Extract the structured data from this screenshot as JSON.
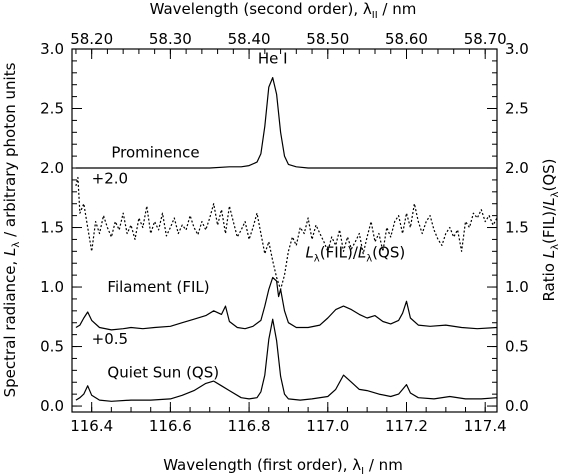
{
  "chart_data": {
    "type": "line",
    "title": "",
    "xlabel_bottom": {
      "text": "Wavelength (first order), λ",
      "sub": "I",
      "tail": " / nm"
    },
    "xlabel_top": {
      "text": "Wavelength (second order), λ",
      "sub": "II",
      "tail": " / nm"
    },
    "ylabel_left": {
      "pre": "Spectral radiance, ",
      "sym": "L",
      "sub": "λ",
      "tail": " / arbitrary photon units"
    },
    "ylabel_right": {
      "pre": "Ratio ",
      "sym1": "L",
      "sub1": "λ",
      "mid": "(FIL)/",
      "sym2": "L",
      "sub2": "λ",
      "tail": "(QS)"
    },
    "xlim_bottom": [
      116.35,
      117.43
    ],
    "xticks_bottom": [
      "116.4",
      "116.6",
      "116.8",
      "117.0",
      "117.2",
      "117.4"
    ],
    "xticks_bottom_values": [
      116.4,
      116.6,
      116.8,
      117.0,
      117.2,
      117.4
    ],
    "xlim_top": [
      58.175,
      58.715
    ],
    "xticks_top": [
      "58.20",
      "58.30",
      "58.40",
      "58.50",
      "58.60",
      "58.70"
    ],
    "xticks_top_values": [
      58.2,
      58.3,
      58.4,
      58.5,
      58.6,
      58.7
    ],
    "ylim": [
      -0.05,
      3.0
    ],
    "yticks": [
      "0.0",
      "0.5",
      "1.0",
      "1.5",
      "2.0",
      "2.5",
      "3.0"
    ],
    "yticks_values": [
      0.0,
      0.5,
      1.0,
      1.5,
      2.0,
      2.5,
      3.0
    ],
    "grid": false,
    "annotations": [
      {
        "id": "he",
        "text": "He I",
        "x": 116.86,
        "y": 2.88
      },
      {
        "id": "prom",
        "text": "Prominence",
        "x": 116.45,
        "y": 2.09
      },
      {
        "id": "off2",
        "text": "+2.0",
        "x": 116.4,
        "y": 1.87
      },
      {
        "id": "fil",
        "text": "Filament (FIL)",
        "x": 116.44,
        "y": 0.96
      },
      {
        "id": "off05",
        "text": "+0.5",
        "x": 116.4,
        "y": 0.52
      },
      {
        "id": "qs",
        "text": "Quiet Sun (QS)",
        "x": 116.44,
        "y": 0.24
      }
    ],
    "ratio_label": {
      "sym1": "L",
      "sub1": "λ",
      "mid": "(FIL)/",
      "sym2": "L",
      "sub2": "λ",
      "tail": "(QS)",
      "x": 116.9,
      "y": 1.25
    },
    "series": [
      {
        "name": "Prominence",
        "style": "solid",
        "x": [
          116.36,
          116.4,
          116.45,
          116.5,
          116.55,
          116.6,
          116.65,
          116.7,
          116.75,
          116.78,
          116.8,
          116.82,
          116.83,
          116.84,
          116.85,
          116.86,
          116.87,
          116.88,
          116.89,
          116.9,
          116.92,
          116.95,
          117.0,
          117.05,
          117.1,
          117.15,
          117.2,
          117.25,
          117.3,
          117.35,
          117.43
        ],
        "y": [
          2.0,
          2.0,
          2.0,
          2.0,
          2.0,
          2.0,
          2.0,
          2.0,
          2.01,
          2.01,
          2.02,
          2.05,
          2.12,
          2.35,
          2.68,
          2.76,
          2.62,
          2.3,
          2.1,
          2.03,
          2.01,
          2.0,
          2.0,
          2.0,
          2.0,
          2.0,
          2.0,
          2.0,
          2.0,
          2.0,
          2.0
        ]
      },
      {
        "name": "Filament (FIL)",
        "style": "solid",
        "x": [
          116.36,
          116.37,
          116.38,
          116.39,
          116.4,
          116.42,
          116.45,
          116.48,
          116.5,
          116.53,
          116.56,
          116.6,
          116.63,
          116.66,
          116.69,
          116.71,
          116.73,
          116.74,
          116.75,
          116.77,
          116.79,
          116.81,
          116.83,
          116.84,
          116.85,
          116.86,
          116.87,
          116.875,
          116.88,
          116.89,
          116.9,
          116.92,
          116.95,
          116.98,
          117.0,
          117.02,
          117.04,
          117.06,
          117.08,
          117.1,
          117.12,
          117.14,
          117.16,
          117.18,
          117.19,
          117.2,
          117.21,
          117.23,
          117.26,
          117.3,
          117.34,
          117.38,
          117.43
        ],
        "y": [
          0.66,
          0.68,
          0.74,
          0.79,
          0.72,
          0.66,
          0.64,
          0.65,
          0.66,
          0.65,
          0.66,
          0.67,
          0.7,
          0.73,
          0.76,
          0.8,
          0.77,
          0.84,
          0.71,
          0.66,
          0.65,
          0.67,
          0.72,
          0.84,
          0.98,
          1.08,
          1.05,
          0.92,
          0.98,
          0.8,
          0.7,
          0.66,
          0.66,
          0.68,
          0.74,
          0.81,
          0.84,
          0.81,
          0.77,
          0.74,
          0.76,
          0.71,
          0.69,
          0.72,
          0.78,
          0.88,
          0.74,
          0.68,
          0.67,
          0.68,
          0.66,
          0.65,
          0.66
        ]
      },
      {
        "name": "Quiet Sun (QS)",
        "style": "solid",
        "x": [
          116.36,
          116.37,
          116.38,
          116.39,
          116.4,
          116.42,
          116.45,
          116.5,
          116.55,
          116.6,
          116.63,
          116.66,
          116.69,
          116.71,
          116.73,
          116.75,
          116.78,
          116.8,
          116.82,
          116.83,
          116.84,
          116.85,
          116.86,
          116.87,
          116.88,
          116.89,
          116.9,
          116.93,
          116.96,
          117.0,
          117.02,
          117.04,
          117.06,
          117.08,
          117.1,
          117.13,
          117.16,
          117.18,
          117.19,
          117.2,
          117.21,
          117.23,
          117.27,
          117.31,
          117.35,
          117.39,
          117.43
        ],
        "y": [
          0.05,
          0.07,
          0.1,
          0.17,
          0.09,
          0.05,
          0.04,
          0.05,
          0.05,
          0.06,
          0.09,
          0.13,
          0.19,
          0.21,
          0.17,
          0.13,
          0.07,
          0.06,
          0.07,
          0.12,
          0.26,
          0.56,
          0.73,
          0.55,
          0.25,
          0.1,
          0.06,
          0.05,
          0.06,
          0.08,
          0.14,
          0.26,
          0.2,
          0.14,
          0.13,
          0.1,
          0.08,
          0.1,
          0.14,
          0.18,
          0.11,
          0.07,
          0.06,
          0.08,
          0.06,
          0.06,
          0.07
        ]
      },
      {
        "name": "Ratio",
        "style": "dotted",
        "x": [
          116.36,
          116.365,
          116.37,
          116.38,
          116.39,
          116.4,
          116.41,
          116.42,
          116.43,
          116.44,
          116.45,
          116.46,
          116.47,
          116.48,
          116.49,
          116.5,
          116.51,
          116.52,
          116.53,
          116.54,
          116.55,
          116.56,
          116.57,
          116.58,
          116.59,
          116.6,
          116.61,
          116.62,
          116.63,
          116.64,
          116.65,
          116.66,
          116.67,
          116.68,
          116.69,
          116.7,
          116.71,
          116.72,
          116.73,
          116.74,
          116.75,
          116.76,
          116.77,
          116.78,
          116.79,
          116.8,
          116.81,
          116.82,
          116.83,
          116.84,
          116.85,
          116.86,
          116.87,
          116.88,
          116.89,
          116.9,
          116.91,
          116.92,
          116.93,
          116.94,
          116.95,
          116.96,
          116.97,
          116.98,
          116.99,
          117.0,
          117.01,
          117.02,
          117.03,
          117.04,
          117.05,
          117.06,
          117.07,
          117.08,
          117.09,
          117.1,
          117.11,
          117.12,
          117.13,
          117.14,
          117.15,
          117.16,
          117.17,
          117.18,
          117.19,
          117.2,
          117.21,
          117.22,
          117.23,
          117.24,
          117.25,
          117.26,
          117.27,
          117.28,
          117.29,
          117.3,
          117.31,
          117.32,
          117.33,
          117.34,
          117.35,
          117.36,
          117.37,
          117.38,
          117.39,
          117.4,
          117.41,
          117.42,
          117.43
        ],
        "y": [
          1.85,
          1.92,
          1.62,
          1.7,
          1.5,
          1.3,
          1.55,
          1.45,
          1.6,
          1.5,
          1.42,
          1.55,
          1.48,
          1.62,
          1.45,
          1.52,
          1.4,
          1.58,
          1.5,
          1.68,
          1.45,
          1.55,
          1.48,
          1.62,
          1.43,
          1.5,
          1.58,
          1.45,
          1.52,
          1.48,
          1.6,
          1.5,
          1.44,
          1.55,
          1.48,
          1.58,
          1.7,
          1.52,
          1.65,
          1.45,
          1.68,
          1.55,
          1.42,
          1.48,
          1.55,
          1.4,
          1.5,
          1.62,
          1.45,
          1.28,
          1.38,
          1.22,
          1.08,
          0.98,
          1.1,
          1.3,
          1.42,
          1.35,
          1.5,
          1.45,
          1.58,
          1.4,
          1.52,
          1.45,
          1.38,
          1.3,
          1.42,
          1.35,
          1.48,
          1.3,
          1.42,
          1.32,
          1.38,
          1.45,
          1.28,
          1.42,
          1.55,
          1.38,
          1.45,
          1.3,
          1.5,
          1.42,
          1.55,
          1.6,
          1.45,
          1.62,
          1.5,
          1.7,
          1.55,
          1.45,
          1.55,
          1.6,
          1.48,
          1.4,
          1.35,
          1.45,
          1.5,
          1.42,
          1.48,
          1.3,
          1.55,
          1.5,
          1.62,
          1.58,
          1.65,
          1.55,
          1.6,
          1.52,
          1.58
        ]
      }
    ]
  }
}
